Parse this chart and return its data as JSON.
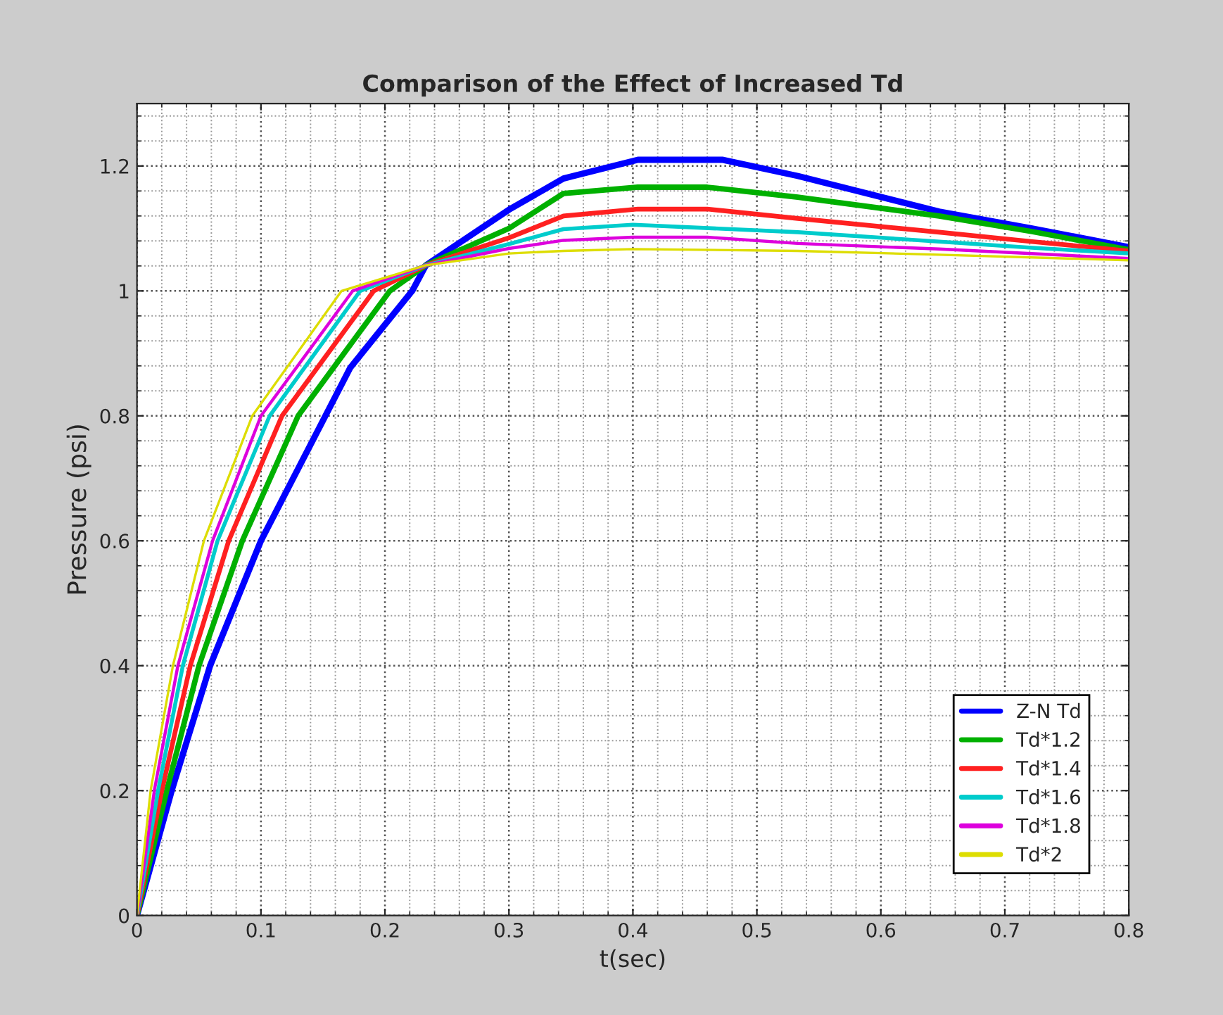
{
  "chart_data": {
    "type": "line",
    "title": "Comparison of the Effect of Increased Td",
    "xlabel": "t(sec)",
    "ylabel": "Pressure (psi)",
    "xlim": [
      0,
      0.8
    ],
    "ylim": [
      0,
      1.3
    ],
    "xticks": [
      0,
      0.1,
      0.2,
      0.3,
      0.4,
      0.5,
      0.6,
      0.7,
      0.8
    ],
    "yticks": [
      0,
      0.2,
      0.4,
      0.6,
      0.8,
      1,
      1.2
    ],
    "grid": true,
    "legend": "bottom right",
    "line_style": "solid",
    "series": [
      {
        "name": "Z-N Td",
        "color": "#0000ff",
        "x": [
          0,
          0.028,
          0.059,
          0.1,
          0.152,
          0.172,
          0.222,
          0.233,
          0.3,
          0.344,
          0.404,
          0.472,
          0.533,
          0.647,
          0.722,
          0.8
        ],
        "values": [
          0,
          0.2,
          0.4,
          0.6,
          0.8,
          0.877,
          1.0,
          1.041,
          1.13,
          1.18,
          1.21,
          1.21,
          1.184,
          1.127,
          1.1,
          1.07
        ]
      },
      {
        "name": "Td*1.2",
        "color": "#00b000",
        "x": [
          0,
          0.024,
          0.05,
          0.085,
          0.13,
          0.204,
          0.233,
          0.3,
          0.344,
          0.404,
          0.46,
          0.533,
          0.647,
          0.722,
          0.8
        ],
        "values": [
          0,
          0.2,
          0.4,
          0.6,
          0.8,
          1.0,
          1.041,
          1.1,
          1.156,
          1.166,
          1.166,
          1.15,
          1.12,
          1.095,
          1.066
        ]
      },
      {
        "name": "Td*1.4",
        "color": "#ff2020",
        "x": [
          0,
          0.02,
          0.043,
          0.074,
          0.117,
          0.191,
          0.233,
          0.3,
          0.344,
          0.404,
          0.46,
          0.533,
          0.647,
          0.722,
          0.8
        ],
        "values": [
          0,
          0.2,
          0.4,
          0.6,
          0.8,
          1.0,
          1.041,
          1.085,
          1.12,
          1.131,
          1.131,
          1.116,
          1.094,
          1.079,
          1.064
        ]
      },
      {
        "name": "Td*1.6",
        "color": "#00cccc",
        "x": [
          0,
          0.017,
          0.037,
          0.065,
          0.107,
          0.18,
          0.233,
          0.3,
          0.344,
          0.4,
          0.533,
          0.647,
          0.722,
          0.8
        ],
        "values": [
          0,
          0.2,
          0.4,
          0.6,
          0.8,
          1.0,
          1.041,
          1.075,
          1.099,
          1.106,
          1.094,
          1.079,
          1.069,
          1.06
        ]
      },
      {
        "name": "Td*1.8",
        "color": "#dd00dd",
        "x": [
          0,
          0.014,
          0.033,
          0.061,
          0.1,
          0.174,
          0.233,
          0.3,
          0.344,
          0.4,
          0.46,
          0.533,
          0.647,
          0.8
        ],
        "values": [
          0,
          0.2,
          0.4,
          0.6,
          0.8,
          1.0,
          1.041,
          1.068,
          1.081,
          1.086,
          1.086,
          1.076,
          1.067,
          1.052
        ]
      },
      {
        "name": "Td*2",
        "color": "#dddd00",
        "x": [
          0,
          0.011,
          0.029,
          0.054,
          0.093,
          0.165,
          0.233,
          0.3,
          0.344,
          0.4,
          0.533,
          0.647,
          0.8
        ],
        "values": [
          0,
          0.2,
          0.4,
          0.6,
          0.8,
          1.0,
          1.041,
          1.06,
          1.064,
          1.067,
          1.064,
          1.058,
          1.049
        ]
      }
    ]
  }
}
